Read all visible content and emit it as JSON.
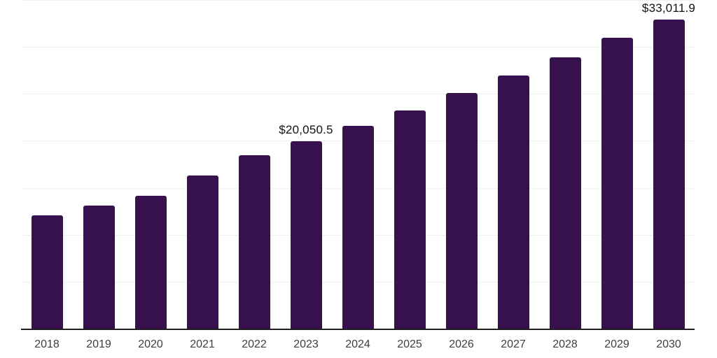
{
  "chart_data": {
    "type": "bar",
    "title": "",
    "xlabel": "",
    "ylabel": "",
    "categories": [
      "2018",
      "2019",
      "2020",
      "2021",
      "2022",
      "2023",
      "2024",
      "2025",
      "2026",
      "2027",
      "2028",
      "2029",
      "2030"
    ],
    "values": [
      12130,
      13210,
      14230,
      16400,
      18560,
      20050.5,
      21680,
      23340,
      25200,
      27020,
      28990,
      31030,
      33011.9
    ],
    "data_labels": [
      null,
      null,
      null,
      null,
      null,
      "$20,050.5",
      null,
      null,
      null,
      null,
      null,
      null,
      "$33,011.9"
    ],
    "ylim": [
      0,
      35000
    ],
    "gridline_step": 5000,
    "grid": "horizontal-only",
    "y_axis_labels_visible": false,
    "legend_position": "none",
    "bar_color": "#36114E",
    "axis_color": "#1f1f1f",
    "gridline_color": "#f0f0f0",
    "tick_label_color": "#3d3d3d",
    "data_label_color": "#111111"
  }
}
